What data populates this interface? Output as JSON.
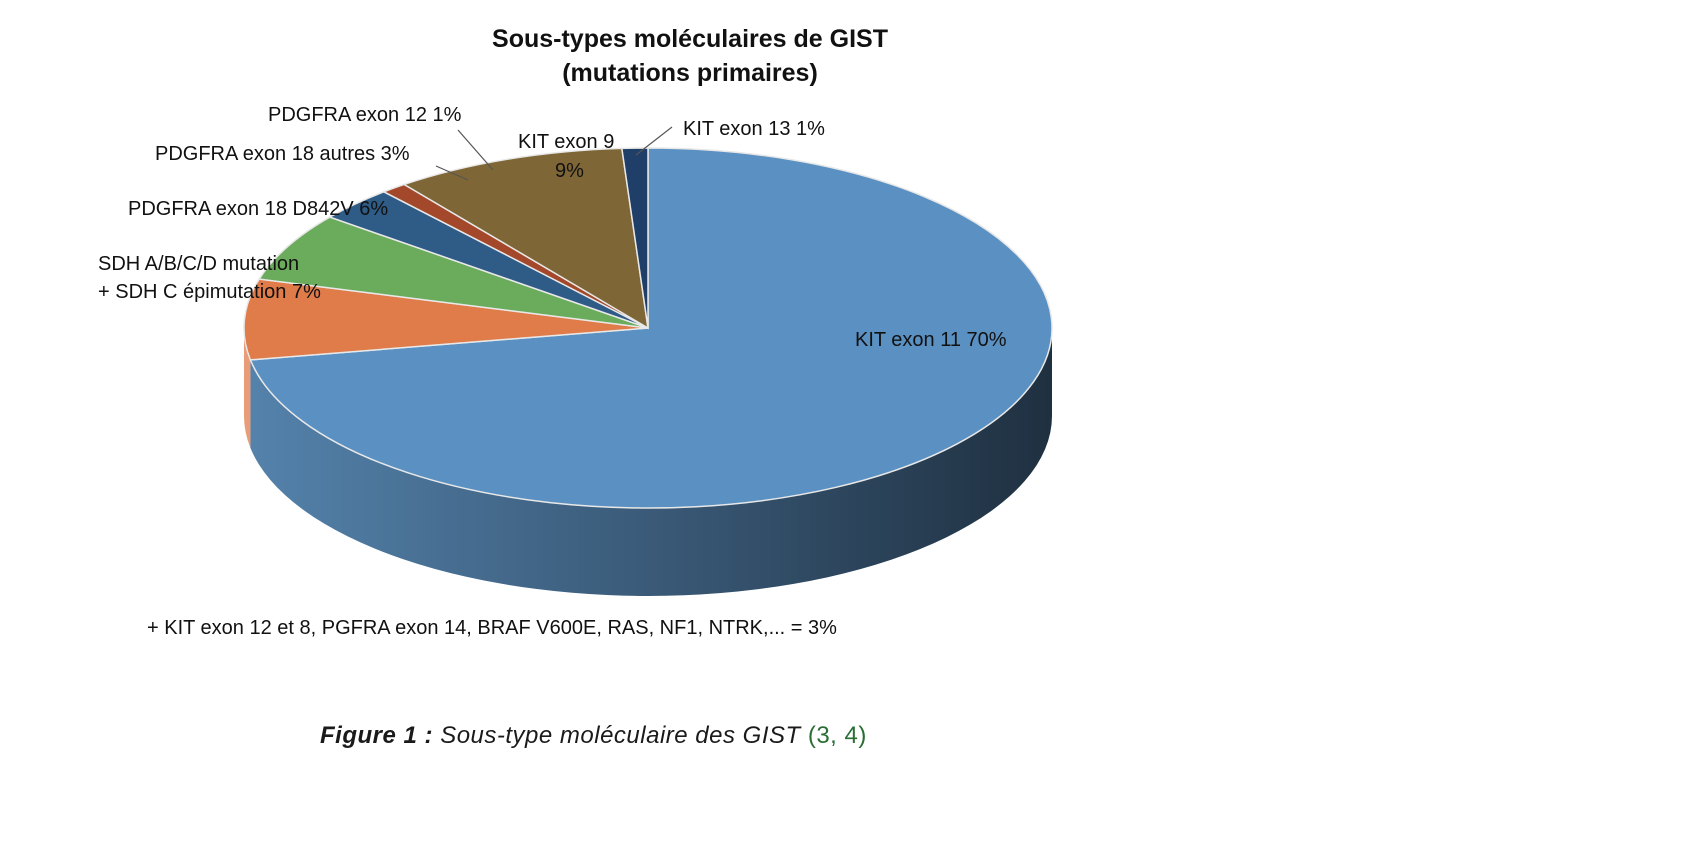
{
  "chart_data": {
    "type": "pie",
    "title": "Sous-types moléculaires de GIST",
    "subtitle": "(mutations primaires)",
    "slices": [
      {
        "label": "KIT exon 11",
        "value": 70,
        "value_label": "70%",
        "color": "#5b91c2"
      },
      {
        "label": "SDH A/B/C/D mutation + SDH C épimutation",
        "value": 7,
        "value_label": "7%",
        "color": "#e07b4a"
      },
      {
        "label": "PDGFRA exon 18 D842V",
        "value": 6,
        "value_label": "6%",
        "color": "#6aac5c"
      },
      {
        "label": "PDGFRA exon 18 autres",
        "value": 3,
        "value_label": "3%",
        "color": "#2f5b87"
      },
      {
        "label": "PDGFRA exon 12",
        "value": 1,
        "value_label": "1%",
        "color": "#a3482b"
      },
      {
        "label": "KIT exon 9",
        "value": 9,
        "value_label": "9%",
        "color": "#7f6636"
      },
      {
        "label": "KIT exon 13",
        "value": 1,
        "value_label": "1%",
        "color": "#1f3e68"
      }
    ],
    "labels": {
      "kit11": "KIT exon 11  70%",
      "sdh_line1": "SDH A/B/C/D mutation",
      "sdh_line2": "+ SDH C épimutation  7%",
      "d842v": "PDGFRA exon 18 D842V 6%",
      "autres": "PDGFRA exon 18 autres 3%",
      "pdgfra12": "PDGFRA exon 12 1%",
      "kit9_line1": "KIT exon 9",
      "kit9_line2": "9%",
      "kit13": "KIT exon 13  1%"
    },
    "footnote": "+ KIT exon 12 et 8, PGFRA exon 14, BRAF V600E, RAS, NF1, NTRK,... = 3%"
  },
  "caption": {
    "figure": "Figure 1 :",
    "text": "Sous-type moléculaire des GIST",
    "ref": "(3, 4)"
  }
}
